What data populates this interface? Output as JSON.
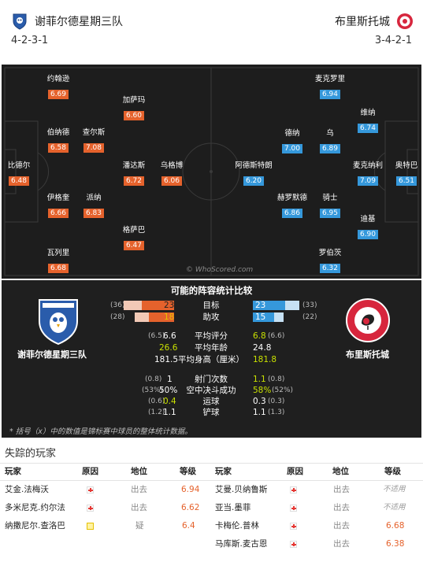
{
  "header": {
    "home_name": "谢菲尔德星期三队",
    "away_name": "布里斯托城",
    "home_formation": "4-2-3-1",
    "away_formation": "3-4-2-1"
  },
  "colors": {
    "home": "#e5622c",
    "away": "#3598db",
    "pitch": "#1d1d1d"
  },
  "pitch": {
    "watermark": "© WhoScored.com",
    "home_players": [
      {
        "name": "约翰逊",
        "rating": "6.69"
      },
      {
        "name": "加萨玛",
        "rating": "6.60"
      },
      {
        "name": "伯纳德",
        "rating": "6.58"
      },
      {
        "name": "查尔斯",
        "rating": "7.08"
      },
      {
        "name": "比德尔",
        "rating": "6.48"
      },
      {
        "name": "潘达斯",
        "rating": "6.72"
      },
      {
        "name": "乌格博",
        "rating": "6.06"
      },
      {
        "name": "伊格奎",
        "rating": "6.66"
      },
      {
        "name": "派纳",
        "rating": "6.83"
      },
      {
        "name": "格萨巴",
        "rating": "6.47"
      },
      {
        "name": "瓦列里",
        "rating": "6.68"
      }
    ],
    "away_players": [
      {
        "name": "麦克罗里",
        "rating": "6.94"
      },
      {
        "name": "维纳",
        "rating": "6.74"
      },
      {
        "name": "德纳",
        "rating": "7.00"
      },
      {
        "name": "乌",
        "rating": "6.89"
      },
      {
        "name": "阿德斯特朗",
        "rating": "6.20"
      },
      {
        "name": "奥特巴",
        "rating": "6.51"
      },
      {
        "name": "麦克纳利",
        "rating": "7.09"
      },
      {
        "name": "赫罗默德",
        "rating": "6.86"
      },
      {
        "name": "骑士",
        "rating": "6.95"
      },
      {
        "name": "迪基",
        "rating": "6.90"
      },
      {
        "name": "罗伯茨",
        "rating": "6.32"
      }
    ]
  },
  "compare": {
    "title": "可能的阵容统计比较",
    "home_name": "谢菲尔德星期三队",
    "away_name": "布里斯托城",
    "bars": [
      {
        "label": "目标",
        "home_par": "(36)",
        "home": "23",
        "home_total": 36,
        "away": "23",
        "away_par": "(33)",
        "away_total": 33
      },
      {
        "label": "助攻",
        "home_par": "(28)",
        "home": "18",
        "home_total": 28,
        "away": "15",
        "away_par": "(22)",
        "away_total": 22
      }
    ],
    "stats1": [
      {
        "label": "平均评分",
        "home_par": "(6.5)",
        "home": "6.6",
        "away": "6.8",
        "away_par": "(6.6)"
      },
      {
        "label": "平均年龄",
        "home_par": "",
        "home": "26.6",
        "away": "24.8",
        "away_par": ""
      },
      {
        "label": "平均身高（厘米）",
        "home_par": "",
        "home": "181.5",
        "away": "181.8",
        "away_par": ""
      }
    ],
    "stats2": [
      {
        "label": "射门次数",
        "home_par": "(0.8)",
        "home": "1",
        "away": "1.1",
        "away_par": "(0.8)"
      },
      {
        "label": "空中决斗成功",
        "home_par": "(53%)",
        "home": "50%",
        "away": "58%",
        "away_par": "(52%)"
      },
      {
        "label": "运球",
        "home_par": "(0.6)",
        "home": "0.4",
        "away": "0.3",
        "away_par": "(0.3)"
      },
      {
        "label": "铲球",
        "home_par": "(1.2)",
        "home": "1.1",
        "away": "1.1",
        "away_par": "(1.3)"
      }
    ],
    "note": "* 括号（x）中的数值是锦标赛中球员的整体统计数据。"
  },
  "missing": {
    "title": "失踪的玩家",
    "headers": {
      "player": "玩家",
      "reason": "原因",
      "status": "地位",
      "rating": "等级"
    },
    "home": [
      {
        "name": "艾金.法梅沃",
        "reason": "injury",
        "status": "出去",
        "rating": "6.94"
      },
      {
        "name": "多米尼克.约尔法",
        "reason": "injury",
        "status": "出去",
        "rating": "6.62"
      },
      {
        "name": "纳撒尼尔.查洛巴",
        "reason": "doubt",
        "status": "疑",
        "rating": "6.4"
      }
    ],
    "away": [
      {
        "name": "艾曼.贝纳鲁斯",
        "reason": "injury",
        "status": "出去",
        "rating": "不适用"
      },
      {
        "name": "亚当.墨菲",
        "reason": "injury",
        "status": "出去",
        "rating": "不适用"
      },
      {
        "name": "卡梅伦.普林",
        "reason": "injury",
        "status": "出去",
        "rating": "6.68"
      },
      {
        "name": "马库斯.麦古恩",
        "reason": "injury",
        "status": "出去",
        "rating": "6.38"
      }
    ]
  }
}
